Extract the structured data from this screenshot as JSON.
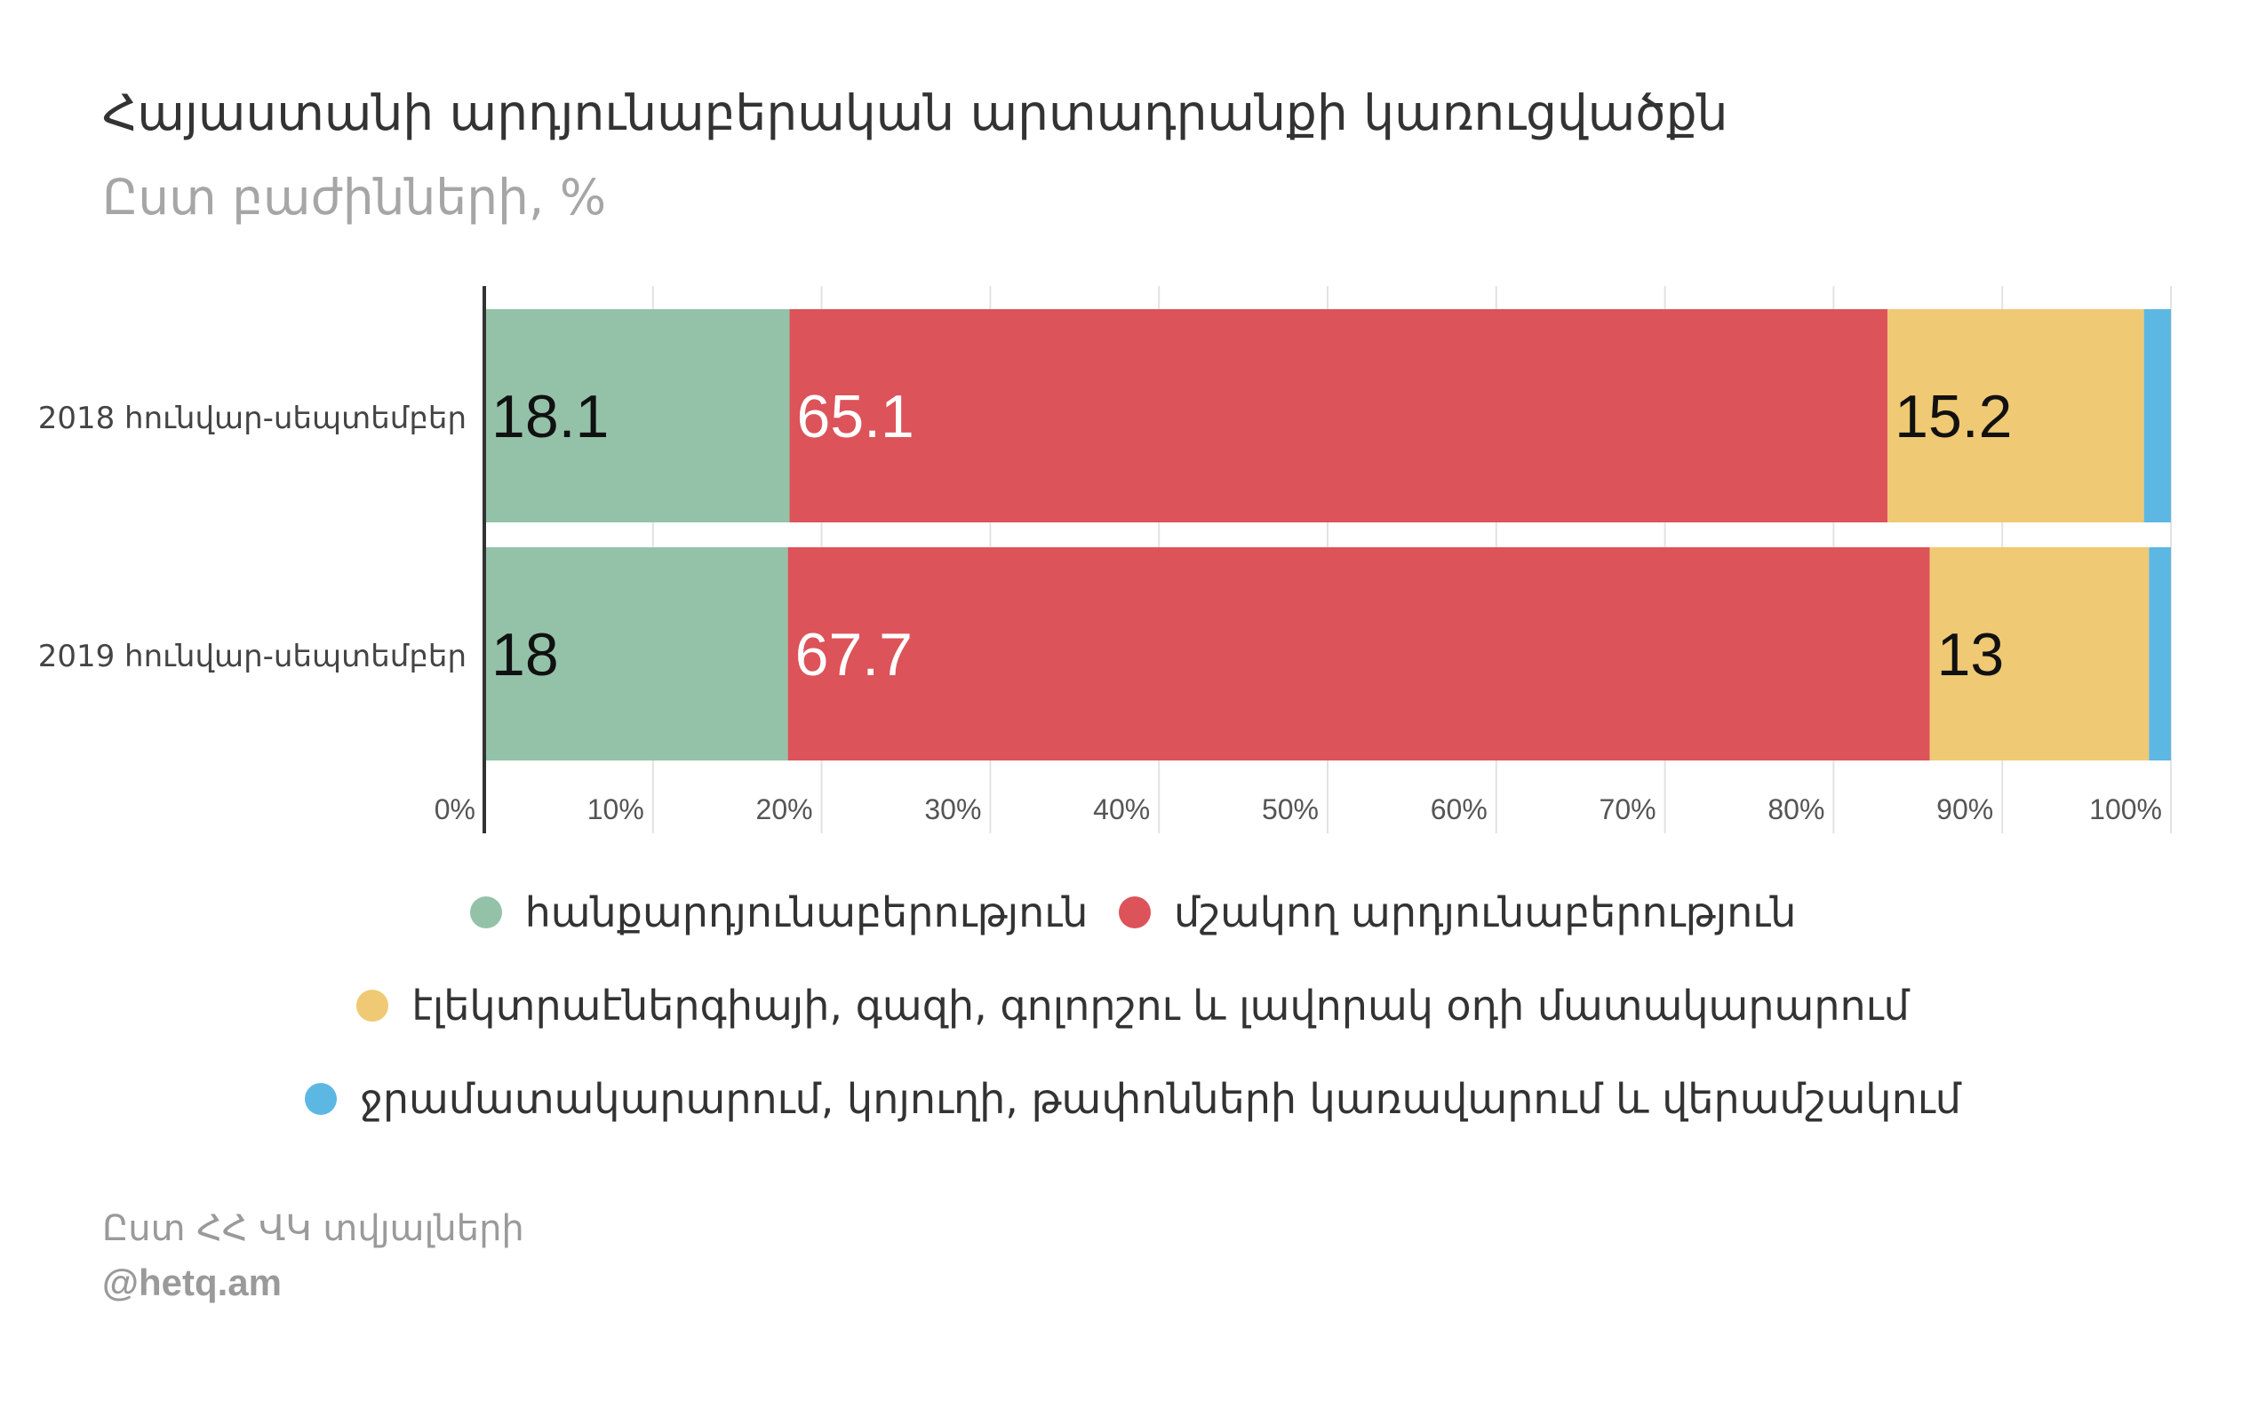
{
  "title": "Հայաստանի արդյունաբերական արտադրանքի կառուցվածքն",
  "subtitle": "Ըստ  բաժինների, %",
  "source": "Ըստ ՀՀ ՎԿ տվյալների",
  "credit": "@hetq.am",
  "chart_data": {
    "type": "bar",
    "orientation": "horizontal",
    "stacked": true,
    "categories": [
      "2018 հունվար-սեպտեմբեր",
      "2019 հունվար-սեպտեմբեր"
    ],
    "series": [
      {
        "name": "հանքարդյունաբերություն",
        "color": "#93c2a9",
        "values": [
          18.1,
          18
        ]
      },
      {
        "name": "մշակող արդյունաբերություն",
        "color": "#dc535a",
        "values": [
          65.1,
          67.7
        ]
      },
      {
        "name": "էլեկտրաէներգիայի, գազի, գոլորշու և լավորակ օդի մատակարարում",
        "color": "#efc974",
        "values": [
          15.2,
          13
        ]
      },
      {
        "name": "ջրամատակարարում, կոյուղի, թափոնների կառավարում և վերամշակում",
        "color": "#5db7e3",
        "values": [
          1.6,
          1.3
        ]
      }
    ],
    "data_labels": [
      [
        "18.1",
        "65.1",
        "15.2",
        ""
      ],
      [
        "18",
        "67.7",
        "13",
        ""
      ]
    ],
    "xlim": [
      0,
      100
    ],
    "xticks": [
      "0%",
      "10%",
      "20%",
      "30%",
      "40%",
      "50%",
      "60%",
      "70%",
      "80%",
      "90%",
      "100%"
    ],
    "grid": true,
    "legend_position": "bottom"
  }
}
